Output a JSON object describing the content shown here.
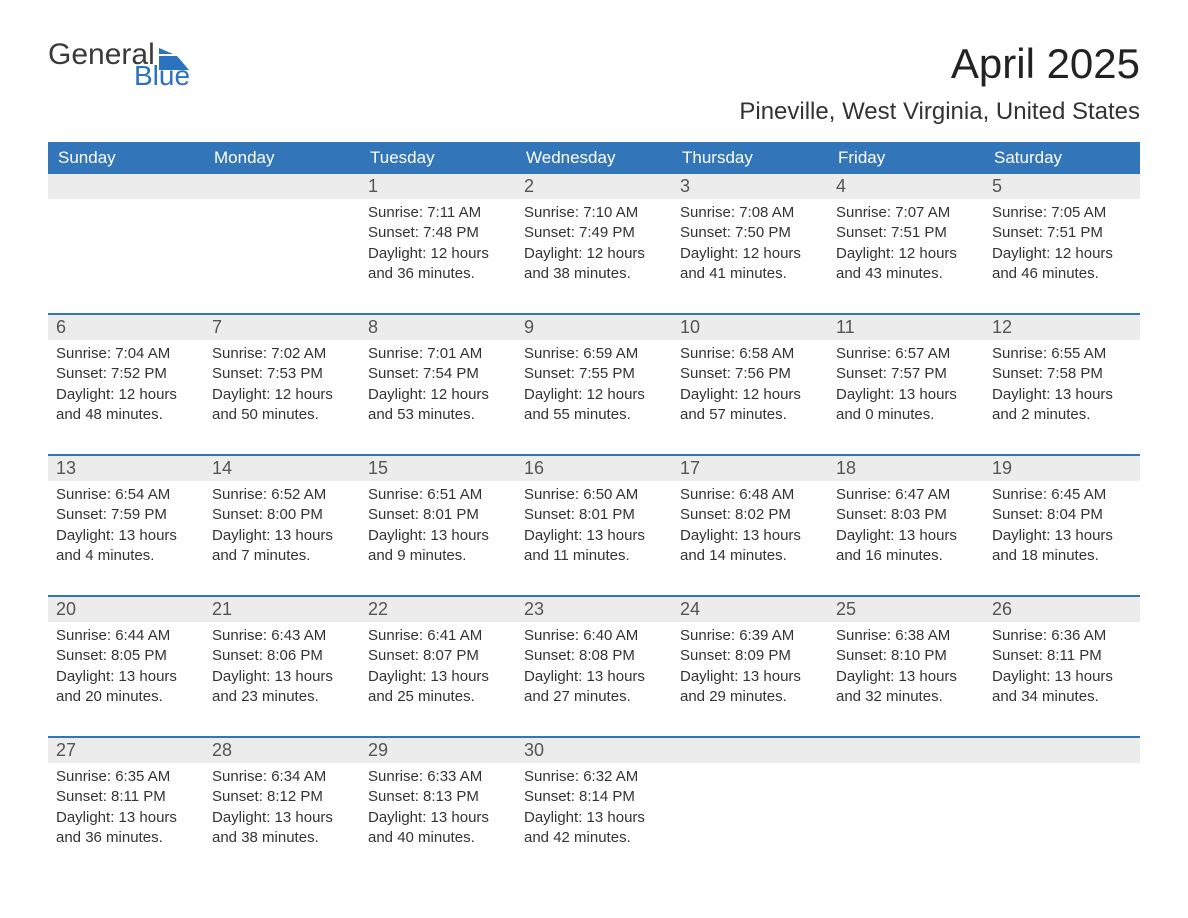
{
  "logo": {
    "general": "General",
    "blue": "Blue",
    "glyph_color": "#2b72c0"
  },
  "title": {
    "month": "April 2025",
    "location": "Pineville, West Virginia, United States"
  },
  "colors": {
    "header_bg": "#3375b9",
    "header_text": "#ffffff",
    "daynum_bg": "#ececec",
    "daynum_text": "#555555",
    "body_text": "#333333",
    "rule": "#3375b9",
    "logo_general": "#3a3a3a",
    "logo_blue": "#2b72c0",
    "page_bg": "#ffffff"
  },
  "typography": {
    "title_fontsize": 42,
    "location_fontsize": 24,
    "dayheader_fontsize": 17,
    "daynum_fontsize": 18,
    "cell_fontsize": 15
  },
  "day_labels": [
    "Sunday",
    "Monday",
    "Tuesday",
    "Wednesday",
    "Thursday",
    "Friday",
    "Saturday"
  ],
  "weeks": [
    [
      {
        "n": "",
        "sr": "",
        "ss": "",
        "dl": ""
      },
      {
        "n": "",
        "sr": "",
        "ss": "",
        "dl": ""
      },
      {
        "n": "1",
        "sr": "Sunrise: 7:11 AM",
        "ss": "Sunset: 7:48 PM",
        "dl": "Daylight: 12 hours and 36 minutes."
      },
      {
        "n": "2",
        "sr": "Sunrise: 7:10 AM",
        "ss": "Sunset: 7:49 PM",
        "dl": "Daylight: 12 hours and 38 minutes."
      },
      {
        "n": "3",
        "sr": "Sunrise: 7:08 AM",
        "ss": "Sunset: 7:50 PM",
        "dl": "Daylight: 12 hours and 41 minutes."
      },
      {
        "n": "4",
        "sr": "Sunrise: 7:07 AM",
        "ss": "Sunset: 7:51 PM",
        "dl": "Daylight: 12 hours and 43 minutes."
      },
      {
        "n": "5",
        "sr": "Sunrise: 7:05 AM",
        "ss": "Sunset: 7:51 PM",
        "dl": "Daylight: 12 hours and 46 minutes."
      }
    ],
    [
      {
        "n": "6",
        "sr": "Sunrise: 7:04 AM",
        "ss": "Sunset: 7:52 PM",
        "dl": "Daylight: 12 hours and 48 minutes."
      },
      {
        "n": "7",
        "sr": "Sunrise: 7:02 AM",
        "ss": "Sunset: 7:53 PM",
        "dl": "Daylight: 12 hours and 50 minutes."
      },
      {
        "n": "8",
        "sr": "Sunrise: 7:01 AM",
        "ss": "Sunset: 7:54 PM",
        "dl": "Daylight: 12 hours and 53 minutes."
      },
      {
        "n": "9",
        "sr": "Sunrise: 6:59 AM",
        "ss": "Sunset: 7:55 PM",
        "dl": "Daylight: 12 hours and 55 minutes."
      },
      {
        "n": "10",
        "sr": "Sunrise: 6:58 AM",
        "ss": "Sunset: 7:56 PM",
        "dl": "Daylight: 12 hours and 57 minutes."
      },
      {
        "n": "11",
        "sr": "Sunrise: 6:57 AM",
        "ss": "Sunset: 7:57 PM",
        "dl": "Daylight: 13 hours and 0 minutes."
      },
      {
        "n": "12",
        "sr": "Sunrise: 6:55 AM",
        "ss": "Sunset: 7:58 PM",
        "dl": "Daylight: 13 hours and 2 minutes."
      }
    ],
    [
      {
        "n": "13",
        "sr": "Sunrise: 6:54 AM",
        "ss": "Sunset: 7:59 PM",
        "dl": "Daylight: 13 hours and 4 minutes."
      },
      {
        "n": "14",
        "sr": "Sunrise: 6:52 AM",
        "ss": "Sunset: 8:00 PM",
        "dl": "Daylight: 13 hours and 7 minutes."
      },
      {
        "n": "15",
        "sr": "Sunrise: 6:51 AM",
        "ss": "Sunset: 8:01 PM",
        "dl": "Daylight: 13 hours and 9 minutes."
      },
      {
        "n": "16",
        "sr": "Sunrise: 6:50 AM",
        "ss": "Sunset: 8:01 PM",
        "dl": "Daylight: 13 hours and 11 minutes."
      },
      {
        "n": "17",
        "sr": "Sunrise: 6:48 AM",
        "ss": "Sunset: 8:02 PM",
        "dl": "Daylight: 13 hours and 14 minutes."
      },
      {
        "n": "18",
        "sr": "Sunrise: 6:47 AM",
        "ss": "Sunset: 8:03 PM",
        "dl": "Daylight: 13 hours and 16 minutes."
      },
      {
        "n": "19",
        "sr": "Sunrise: 6:45 AM",
        "ss": "Sunset: 8:04 PM",
        "dl": "Daylight: 13 hours and 18 minutes."
      }
    ],
    [
      {
        "n": "20",
        "sr": "Sunrise: 6:44 AM",
        "ss": "Sunset: 8:05 PM",
        "dl": "Daylight: 13 hours and 20 minutes."
      },
      {
        "n": "21",
        "sr": "Sunrise: 6:43 AM",
        "ss": "Sunset: 8:06 PM",
        "dl": "Daylight: 13 hours and 23 minutes."
      },
      {
        "n": "22",
        "sr": "Sunrise: 6:41 AM",
        "ss": "Sunset: 8:07 PM",
        "dl": "Daylight: 13 hours and 25 minutes."
      },
      {
        "n": "23",
        "sr": "Sunrise: 6:40 AM",
        "ss": "Sunset: 8:08 PM",
        "dl": "Daylight: 13 hours and 27 minutes."
      },
      {
        "n": "24",
        "sr": "Sunrise: 6:39 AM",
        "ss": "Sunset: 8:09 PM",
        "dl": "Daylight: 13 hours and 29 minutes."
      },
      {
        "n": "25",
        "sr": "Sunrise: 6:38 AM",
        "ss": "Sunset: 8:10 PM",
        "dl": "Daylight: 13 hours and 32 minutes."
      },
      {
        "n": "26",
        "sr": "Sunrise: 6:36 AM",
        "ss": "Sunset: 8:11 PM",
        "dl": "Daylight: 13 hours and 34 minutes."
      }
    ],
    [
      {
        "n": "27",
        "sr": "Sunrise: 6:35 AM",
        "ss": "Sunset: 8:11 PM",
        "dl": "Daylight: 13 hours and 36 minutes."
      },
      {
        "n": "28",
        "sr": "Sunrise: 6:34 AM",
        "ss": "Sunset: 8:12 PM",
        "dl": "Daylight: 13 hours and 38 minutes."
      },
      {
        "n": "29",
        "sr": "Sunrise: 6:33 AM",
        "ss": "Sunset: 8:13 PM",
        "dl": "Daylight: 13 hours and 40 minutes."
      },
      {
        "n": "30",
        "sr": "Sunrise: 6:32 AM",
        "ss": "Sunset: 8:14 PM",
        "dl": "Daylight: 13 hours and 42 minutes."
      },
      {
        "n": "",
        "sr": "",
        "ss": "",
        "dl": ""
      },
      {
        "n": "",
        "sr": "",
        "ss": "",
        "dl": ""
      },
      {
        "n": "",
        "sr": "",
        "ss": "",
        "dl": ""
      }
    ]
  ]
}
